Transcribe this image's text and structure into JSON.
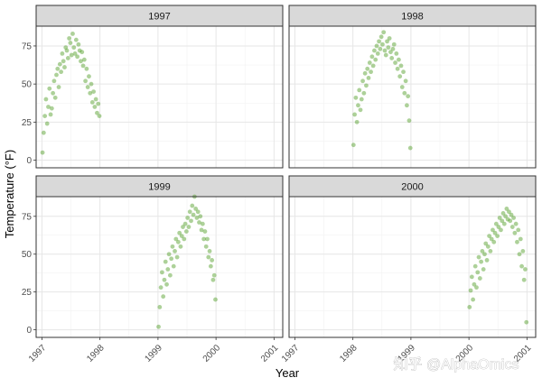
{
  "chart_data": {
    "type": "scatter",
    "xlabel": "Year",
    "ylabel": "Temperature (°F)",
    "xlim": [
      1996.9,
      2001.15
    ],
    "ylim": [
      -5,
      88
    ],
    "x_ticks": [
      1997,
      1998,
      1999,
      2000,
      2001
    ],
    "y_ticks": [
      0,
      25,
      50,
      75
    ],
    "point_color": "#4a9a1c",
    "grid": true,
    "layout": "facet_wrap 2x2, shared axes",
    "panels": [
      {
        "title": "1997",
        "x": [
          1997.01,
          1997.03,
          1997.05,
          1997.07,
          1997.09,
          1997.11,
          1997.13,
          1997.15,
          1997.17,
          1997.19,
          1997.21,
          1997.23,
          1997.25,
          1997.27,
          1997.29,
          1997.31,
          1997.33,
          1997.35,
          1997.37,
          1997.39,
          1997.41,
          1997.43,
          1997.45,
          1997.47,
          1997.49,
          1997.51,
          1997.53,
          1997.55,
          1997.57,
          1997.59,
          1997.61,
          1997.63,
          1997.65,
          1997.67,
          1997.69,
          1997.71,
          1997.73,
          1997.75,
          1997.77,
          1997.79,
          1997.81,
          1997.83,
          1997.85,
          1997.87,
          1997.89,
          1997.91,
          1997.93,
          1997.95,
          1997.97,
          1997.99
        ],
        "y": [
          5,
          18,
          29,
          40,
          24,
          35,
          47,
          30,
          34,
          44,
          52,
          41,
          56,
          60,
          48,
          63,
          58,
          70,
          65,
          61,
          74,
          72,
          67,
          80,
          77,
          69,
          83,
          74,
          70,
          79,
          68,
          76,
          72,
          65,
          71,
          62,
          66,
          52,
          60,
          48,
          55,
          44,
          50,
          38,
          45,
          35,
          40,
          31,
          37,
          29
        ]
      },
      {
        "title": "1998",
        "x": [
          1998.01,
          1998.03,
          1998.05,
          1998.07,
          1998.09,
          1998.11,
          1998.13,
          1998.15,
          1998.17,
          1998.19,
          1998.21,
          1998.23,
          1998.25,
          1998.27,
          1998.29,
          1998.31,
          1998.33,
          1998.35,
          1998.37,
          1998.39,
          1998.41,
          1998.43,
          1998.45,
          1998.47,
          1998.49,
          1998.51,
          1998.53,
          1998.55,
          1998.57,
          1998.59,
          1998.61,
          1998.63,
          1998.65,
          1998.67,
          1998.69,
          1998.71,
          1998.73,
          1998.75,
          1998.77,
          1998.79,
          1998.81,
          1998.83,
          1998.85,
          1998.87,
          1998.89,
          1998.91,
          1998.93,
          1998.95,
          1998.97,
          1998.99
        ],
        "y": [
          10,
          30,
          41,
          25,
          36,
          46,
          33,
          40,
          52,
          44,
          57,
          49,
          60,
          54,
          64,
          58,
          68,
          62,
          72,
          66,
          75,
          70,
          78,
          73,
          81,
          76,
          84,
          72,
          69,
          78,
          74,
          80,
          71,
          67,
          73,
          76,
          64,
          70,
          60,
          66,
          55,
          62,
          48,
          58,
          44,
          52,
          36,
          42,
          26,
          8
        ]
      },
      {
        "title": "1999",
        "x": [
          1999.01,
          1999.03,
          1999.05,
          1999.07,
          1999.09,
          1999.11,
          1999.13,
          1999.15,
          1999.17,
          1999.19,
          1999.21,
          1999.23,
          1999.25,
          1999.27,
          1999.29,
          1999.31,
          1999.33,
          1999.35,
          1999.37,
          1999.39,
          1999.41,
          1999.43,
          1999.45,
          1999.47,
          1999.49,
          1999.51,
          1999.53,
          1999.55,
          1999.57,
          1999.59,
          1999.61,
          1999.63,
          1999.65,
          1999.67,
          1999.69,
          1999.71,
          1999.73,
          1999.75,
          1999.77,
          1999.79,
          1999.81,
          1999.83,
          1999.85,
          1999.87,
          1999.89,
          1999.91,
          1999.93,
          1999.95,
          1999.97,
          1999.99
        ],
        "y": [
          2,
          15,
          28,
          38,
          22,
          33,
          45,
          30,
          40,
          50,
          36,
          47,
          55,
          42,
          52,
          60,
          48,
          58,
          64,
          55,
          62,
          68,
          60,
          70,
          65,
          74,
          68,
          78,
          72,
          82,
          76,
          88,
          80,
          74,
          78,
          71,
          75,
          66,
          70,
          60,
          65,
          55,
          60,
          48,
          52,
          42,
          46,
          33,
          36,
          20
        ]
      },
      {
        "title": "2000",
        "x": [
          2000.01,
          2000.03,
          2000.05,
          2000.07,
          2000.09,
          2000.11,
          2000.13,
          2000.15,
          2000.17,
          2000.19,
          2000.21,
          2000.23,
          2000.25,
          2000.27,
          2000.29,
          2000.31,
          2000.33,
          2000.35,
          2000.37,
          2000.39,
          2000.41,
          2000.43,
          2000.45,
          2000.47,
          2000.49,
          2000.51,
          2000.53,
          2000.55,
          2000.57,
          2000.59,
          2000.61,
          2000.63,
          2000.65,
          2000.67,
          2000.69,
          2000.71,
          2000.73,
          2000.75,
          2000.77,
          2000.79,
          2000.81,
          2000.83,
          2000.85,
          2000.87,
          2000.89,
          2000.91,
          2000.93,
          2000.95,
          2000.97,
          2000.99
        ],
        "y": [
          15,
          26,
          35,
          20,
          30,
          42,
          28,
          38,
          48,
          34,
          45,
          52,
          40,
          50,
          57,
          46,
          55,
          62,
          52,
          60,
          66,
          58,
          64,
          70,
          62,
          68,
          74,
          66,
          72,
          77,
          70,
          75,
          80,
          73,
          78,
          72,
          76,
          68,
          74,
          64,
          70,
          58,
          66,
          50,
          60,
          42,
          52,
          33,
          40,
          5
        ]
      }
    ]
  },
  "watermark": "知乎 @AlphaOmics"
}
